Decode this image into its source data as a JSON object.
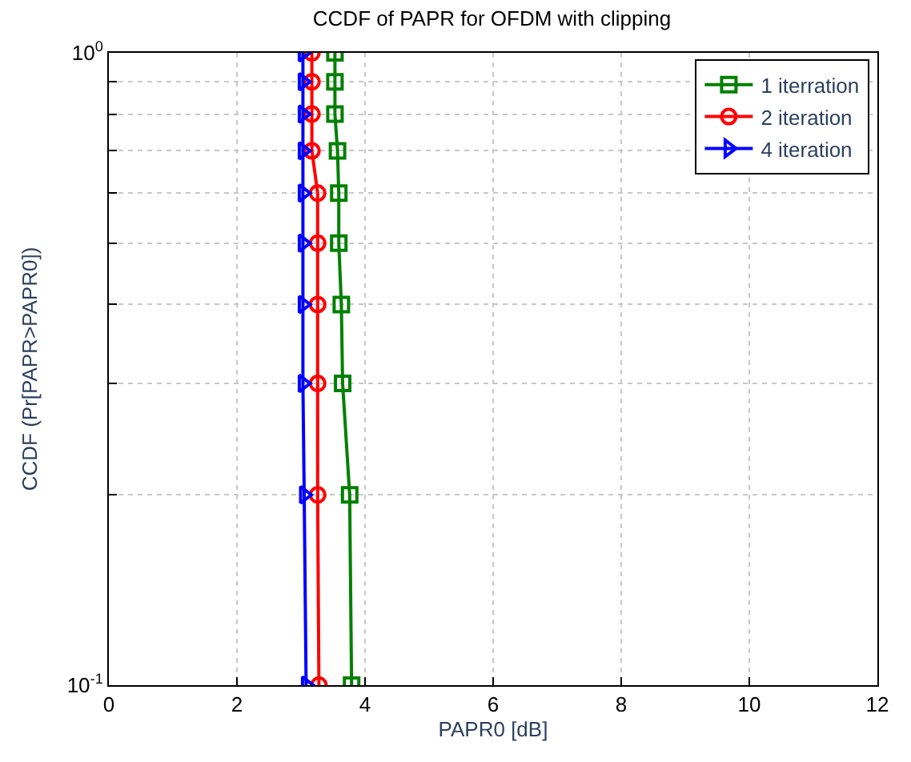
{
  "chart_data": {
    "type": "line",
    "title": "CCDF of PAPR for OFDM with clipping",
    "xlabel": "PAPR0 [dB]",
    "ylabel": "CCDF (Pr[PAPR>PAPR0])",
    "log": "y",
    "grid": true,
    "legend": "top right",
    "xlim": [
      0,
      12
    ],
    "xticks": [
      0,
      2,
      4,
      6,
      8,
      10,
      12
    ],
    "ylim": [
      0.1,
      1
    ],
    "yticks": [
      {
        "value": 0.1,
        "label": "10$^{-1}$"
      },
      {
        "value": 0.2,
        "label": null
      },
      {
        "value": 0.3,
        "label": null
      },
      {
        "value": 0.4,
        "label": null
      },
      {
        "value": 0.5,
        "label": null
      },
      {
        "value": 0.6,
        "label": null
      },
      {
        "value": 0.7,
        "label": null
      },
      {
        "value": 0.8,
        "label": null
      },
      {
        "value": 0.9,
        "label": null
      },
      {
        "value": 1,
        "label": "10$^{0}$"
      }
    ],
    "series": [
      {
        "name": "1 iterration",
        "color": "#008000",
        "marker": "square",
        "x": [
          3.53,
          3.53,
          3.53,
          3.57,
          3.59,
          3.59,
          3.63,
          3.65,
          3.76,
          3.79
        ],
        "values": [
          1,
          0.9,
          0.8,
          0.7,
          0.6,
          0.5,
          0.4,
          0.3,
          0.2,
          0.1
        ]
      },
      {
        "name": "2 iteration",
        "color": "#ff0000",
        "marker": "circle",
        "x": [
          3.17,
          3.17,
          3.17,
          3.17,
          3.26,
          3.26,
          3.26,
          3.26,
          3.26,
          3.28
        ],
        "values": [
          1,
          0.9,
          0.8,
          0.7,
          0.6,
          0.5,
          0.4,
          0.3,
          0.2,
          0.1
        ]
      },
      {
        "name": "4 iteration",
        "color": "#0000ff",
        "marker": "triangle",
        "x": [
          3.03,
          3.03,
          3.03,
          3.03,
          3.03,
          3.03,
          3.03,
          3.03,
          3.05,
          3.08
        ],
        "values": [
          1,
          0.9,
          0.8,
          0.7,
          0.6,
          0.5,
          0.4,
          0.3,
          0.2,
          0.1
        ]
      }
    ]
  }
}
